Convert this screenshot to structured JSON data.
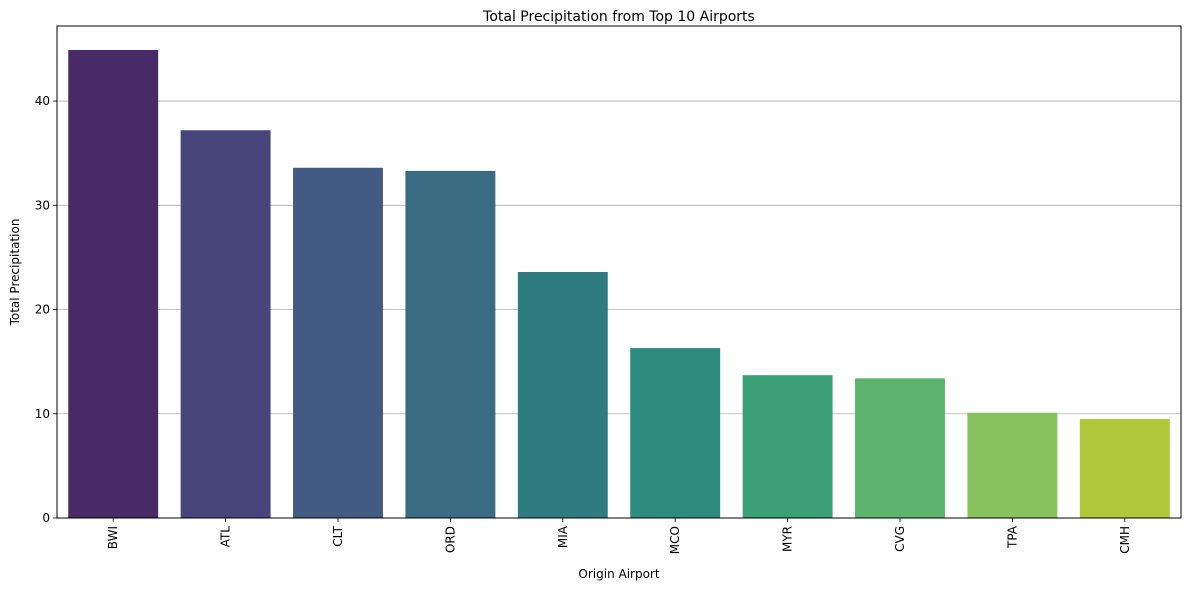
{
  "chart_data": {
    "type": "bar",
    "title": "Total Precipitation from Top 10 Airports",
    "xlabel": "Origin Airport",
    "ylabel": "Total Precipitation",
    "categories": [
      "BWI",
      "ATL",
      "CLT",
      "ORD",
      "MIA",
      "MCO",
      "MYR",
      "CVG",
      "TPA",
      "CMH"
    ],
    "values": [
      44.9,
      37.2,
      33.6,
      33.3,
      23.6,
      16.3,
      13.7,
      13.4,
      10.1,
      9.5
    ],
    "colors": [
      "#482b66",
      "#47457c",
      "#435a83",
      "#396c83",
      "#2e7b80",
      "#2e8c7e",
      "#3a9e76",
      "#5db46f",
      "#88c35d",
      "#b0c73a"
    ],
    "ylim": [
      0,
      47.2
    ],
    "yticks": [
      0,
      10,
      20,
      30,
      40
    ],
    "ytick_labels": [
      "0",
      "10",
      "20",
      "30",
      "40"
    ],
    "grid": "horizontal",
    "legend": "none"
  }
}
